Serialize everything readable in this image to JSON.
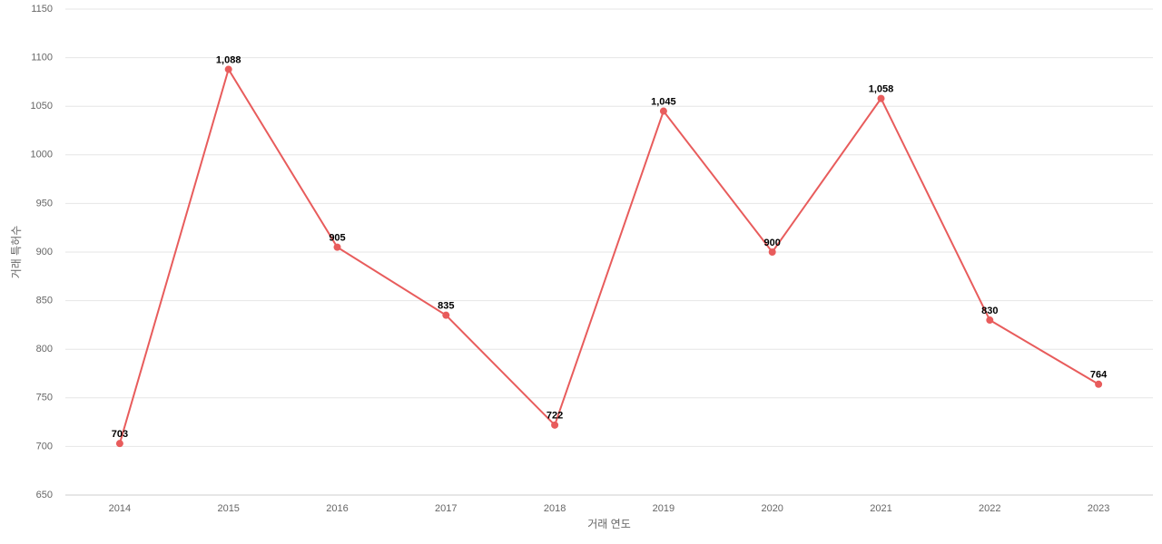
{
  "chart_data": {
    "type": "line",
    "x_label": "거래 연도",
    "y_label": "거래 특허수",
    "categories": [
      "2014",
      "2015",
      "2016",
      "2017",
      "2018",
      "2019",
      "2020",
      "2021",
      "2022",
      "2023"
    ],
    "values": [
      703,
      1088,
      905,
      835,
      722,
      1045,
      900,
      1058,
      830,
      764
    ],
    "value_labels": [
      "703",
      "1,088",
      "905",
      "835",
      "722",
      "1,045",
      "900",
      "1,058",
      "830",
      "764"
    ],
    "color": "#e85c5c",
    "ylim": [
      650,
      1150
    ],
    "yticks": [
      650,
      700,
      750,
      800,
      850,
      900,
      950,
      1000,
      1050,
      1100,
      1150
    ],
    "grid": true
  }
}
